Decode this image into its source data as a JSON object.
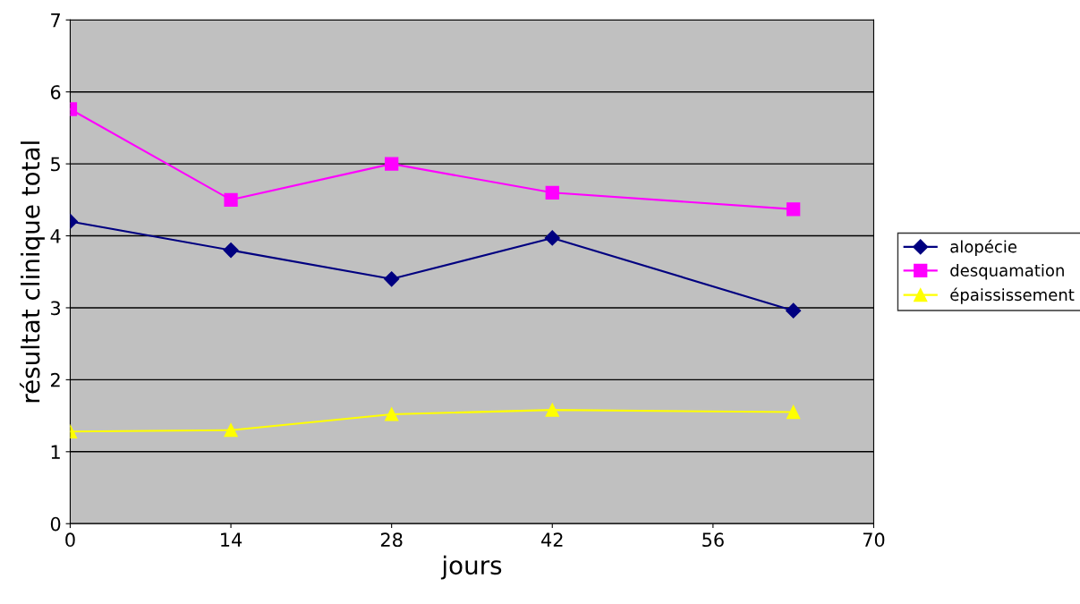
{
  "chart_data": {
    "type": "line",
    "xlabel": "jours",
    "ylabel": "résultat clinique total",
    "x": [
      0,
      14,
      28,
      42,
      63
    ],
    "series": [
      {
        "name": "alopécie",
        "color": "#000080",
        "marker": "diamond",
        "values": [
          4.2,
          3.8,
          3.4,
          3.97,
          2.96
        ]
      },
      {
        "name": "desquamation",
        "color": "#ff00ff",
        "marker": "square",
        "values": [
          5.76,
          4.5,
          5.0,
          4.6,
          4.37
        ]
      },
      {
        "name": "épaississement",
        "color": "#ffff00",
        "marker": "triangle",
        "values": [
          1.28,
          1.3,
          1.52,
          1.58,
          1.55
        ]
      }
    ],
    "xlim": [
      0,
      70
    ],
    "xticks": [
      0,
      14,
      28,
      42,
      56,
      70
    ],
    "ylim": [
      0,
      7
    ],
    "yticks": [
      0,
      1,
      2,
      3,
      4,
      5,
      6,
      7
    ],
    "grid": "y",
    "legend": "right",
    "line_style": "solid"
  }
}
